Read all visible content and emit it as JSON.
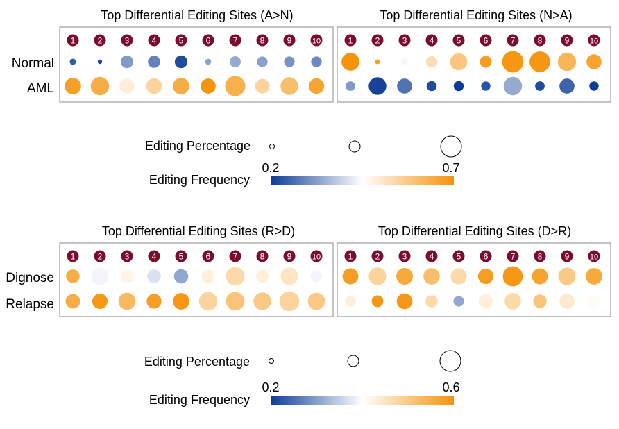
{
  "figure": {
    "colors": {
      "low": "#0d3c96",
      "mid": "#ffffff",
      "high": "#f5930a",
      "site_badge": "#7a0d2e",
      "panel_border": "#888888"
    }
  },
  "chart_data": [
    {
      "type": "scatter",
      "title": "Top Differential Editing Sites (A>N)",
      "rows": [
        "Normal",
        "AML"
      ],
      "sites": [
        "1",
        "2",
        "3",
        "4",
        "5",
        "6",
        "7",
        "8",
        "9",
        "10"
      ],
      "series": [
        {
          "name": "Normal",
          "frequency": [
            0.24,
            0.21,
            0.32,
            0.29,
            0.22,
            0.33,
            0.34,
            0.33,
            0.31,
            0.3
          ],
          "percentage": [
            0.15,
            0.07,
            0.42,
            0.4,
            0.42,
            0.14,
            0.35,
            0.33,
            0.33,
            0.33
          ]
        },
        {
          "name": "AML",
          "frequency": [
            0.67,
            0.64,
            0.49,
            0.55,
            0.64,
            0.71,
            0.63,
            0.55,
            0.6,
            0.66
          ],
          "percentage": [
            0.58,
            0.66,
            0.52,
            0.54,
            0.58,
            0.52,
            0.74,
            0.5,
            0.63,
            0.54
          ]
        }
      ]
    },
    {
      "type": "scatter",
      "title": "Top Differential Editing Sites (N>A)",
      "rows": [
        "Normal",
        "AML"
      ],
      "sites": [
        "1",
        "2",
        "3",
        "4",
        "5",
        "6",
        "7",
        "8",
        "9",
        "10"
      ],
      "series": [
        {
          "name": "Normal",
          "frequency": [
            0.7,
            0.68,
            0.44,
            0.53,
            0.58,
            0.68,
            0.69,
            0.69,
            0.62,
            0.66
          ],
          "percentage": [
            0.64,
            0.09,
            0.17,
            0.36,
            0.61,
            0.38,
            0.79,
            0.76,
            0.66,
            0.52
          ]
        },
        {
          "name": "AML",
          "frequency": [
            0.32,
            0.21,
            0.27,
            0.22,
            0.2,
            0.23,
            0.34,
            0.22,
            0.25,
            0.2
          ],
          "percentage": [
            0.29,
            0.63,
            0.52,
            0.31,
            0.31,
            0.28,
            0.66,
            0.29,
            0.52,
            0.28
          ]
        }
      ]
    },
    {
      "type": "scatter",
      "title": "Top Differential Editing Sites (R>D)",
      "rows": [
        "Dignose",
        "Relapse"
      ],
      "sites": [
        "1",
        "2",
        "3",
        "4",
        "5",
        "6",
        "7",
        "8",
        "9",
        "10"
      ],
      "series": [
        {
          "name": "Dignose",
          "frequency": [
            0.55,
            0.39,
            0.42,
            0.37,
            0.31,
            0.43,
            0.47,
            0.43,
            0.45,
            0.39
          ],
          "percentage": [
            0.46,
            0.62,
            0.45,
            0.46,
            0.49,
            0.44,
            0.67,
            0.42,
            0.62,
            0.38
          ]
        },
        {
          "name": "Relapse",
          "frequency": [
            0.55,
            0.59,
            0.53,
            0.58,
            0.59,
            0.48,
            0.51,
            0.5,
            0.48,
            0.5
          ],
          "percentage": [
            0.5,
            0.53,
            0.61,
            0.51,
            0.58,
            0.66,
            0.67,
            0.63,
            0.72,
            0.61
          ]
        }
      ]
    },
    {
      "type": "scatter",
      "title": "Top Differential Editing Sites (D>R)",
      "rows": [
        "Dignose",
        "Relapse"
      ],
      "sites": [
        "1",
        "2",
        "3",
        "4",
        "5",
        "6",
        "7",
        "8",
        "9",
        "10"
      ],
      "series": [
        {
          "name": "Dignose",
          "frequency": [
            0.58,
            0.48,
            0.56,
            0.52,
            0.47,
            0.58,
            0.59,
            0.57,
            0.5,
            0.56
          ],
          "percentage": [
            0.56,
            0.63,
            0.59,
            0.58,
            0.57,
            0.54,
            0.73,
            0.56,
            0.62,
            0.58
          ]
        },
        {
          "name": "Relapse",
          "frequency": [
            0.43,
            0.59,
            0.59,
            0.47,
            0.31,
            0.43,
            0.47,
            0.51,
            0.44,
            0.41
          ],
          "percentage": [
            0.34,
            0.38,
            0.55,
            0.4,
            0.33,
            0.48,
            0.58,
            0.45,
            0.52,
            0.4
          ]
        }
      ]
    }
  ],
  "legends": [
    {
      "size_label": "Editing Percentage",
      "color_label": "Editing Frequency",
      "color_min": "0.2",
      "color_max": "0.7",
      "color_min_value": 0.2,
      "color_max_value": 0.7
    },
    {
      "size_label": "Editing Percentage",
      "color_label": "Editing Frequency",
      "color_min": "0.2",
      "color_max": "0.6",
      "color_min_value": 0.2,
      "color_max_value": 0.6
    }
  ]
}
